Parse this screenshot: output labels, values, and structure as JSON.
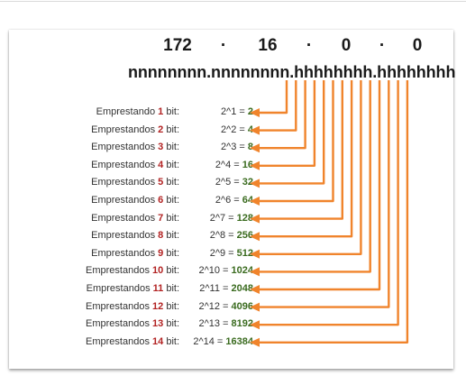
{
  "octets": [
    "172",
    "·",
    "16",
    "·",
    "0",
    "·",
    "0"
  ],
  "bit_pattern": "nnnnnnnn.nnnnnnnn.hhhhhhhh.hhhhhhhh",
  "colors": {
    "arrow": "#f0842c",
    "bits_number": "#b22222",
    "result_value": "#3a6b1f"
  },
  "rows": [
    {
      "prefix": "Emprestando ",
      "bits": "1",
      "suffix": " bit:",
      "expr": "2^1 = ",
      "value": "2"
    },
    {
      "prefix": "Emprestandos ",
      "bits": "2",
      "suffix": " bit:",
      "expr": "2^2 = ",
      "value": "4"
    },
    {
      "prefix": "Emprestandos ",
      "bits": "3",
      "suffix": " bit:",
      "expr": "2^3 = ",
      "value": "8"
    },
    {
      "prefix": "Emprestandos ",
      "bits": "4",
      "suffix": " bit:",
      "expr": "2^4 = ",
      "value": "16"
    },
    {
      "prefix": "Emprestandos ",
      "bits": "5",
      "suffix": " bit:",
      "expr": "2^5 = ",
      "value": "32"
    },
    {
      "prefix": "Emprestandos ",
      "bits": "6",
      "suffix": " bit:",
      "expr": "2^6 = ",
      "value": "64"
    },
    {
      "prefix": "Emprestandos ",
      "bits": "7",
      "suffix": " bit:",
      "expr": "2^7 = ",
      "value": "128"
    },
    {
      "prefix": "Emprestandos ",
      "bits": "8",
      "suffix": " bit:",
      "expr": "2^8 = ",
      "value": "256"
    },
    {
      "prefix": "Emprestandos ",
      "bits": "9",
      "suffix": " bit:",
      "expr": "2^9 = ",
      "value": "512"
    },
    {
      "prefix": "Emprestandos ",
      "bits": "10",
      "suffix": " bit:",
      "expr": "2^10 = ",
      "value": "1024"
    },
    {
      "prefix": "Emprestandos ",
      "bits": "11",
      "suffix": " bit:",
      "expr": "2^11 = ",
      "value": "2048"
    },
    {
      "prefix": "Emprestandos ",
      "bits": "12",
      "suffix": " bit:",
      "expr": "2^12 = ",
      "value": "4096"
    },
    {
      "prefix": "Emprestandos ",
      "bits": "13",
      "suffix": " bit:",
      "expr": "2^13 = ",
      "value": "8192"
    },
    {
      "prefix": "Emprestandos ",
      "bits": "14",
      "suffix": " bit:",
      "expr": "2^14 = ",
      "value": "16384"
    }
  ]
}
